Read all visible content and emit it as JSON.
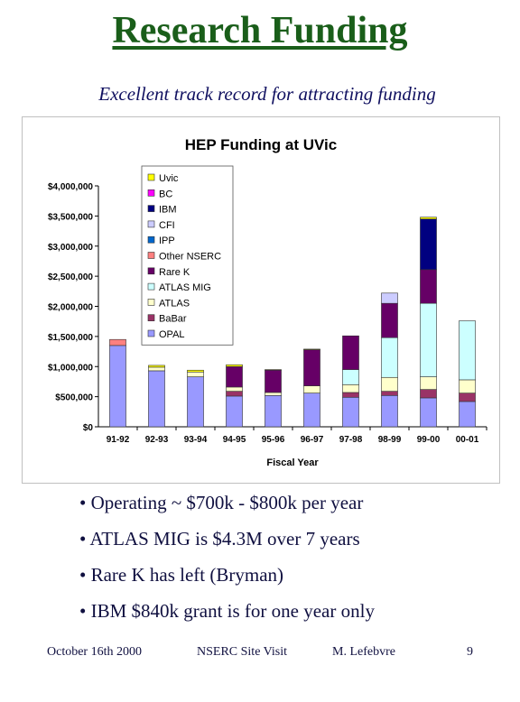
{
  "slide": {
    "title": "Research Funding",
    "subtitle": "Excellent track record for attracting funding",
    "bullets": [
      "• Operating ~ $700k - $800k per year",
      "• ATLAS MIG is $4.3M over 7 years",
      "• Rare K has left (Bryman)",
      "• IBM $840k grant is for one year only"
    ],
    "footer": {
      "date": "October 16th 2000",
      "venue": "NSERC Site Visit",
      "author": "M. Lefebvre",
      "page": "9"
    }
  },
  "chart_data": {
    "type": "bar",
    "stacked": true,
    "title": "HEP Funding at UVic",
    "xlabel": "Fiscal Year",
    "ylabel": "",
    "ylim": [
      0,
      4000000
    ],
    "yticks": [
      0,
      500000,
      1000000,
      1500000,
      2000000,
      2500000,
      3000000,
      3500000,
      4000000
    ],
    "ytick_labels": [
      "$0",
      "$500,000",
      "$1,000,000",
      "$1,500,000",
      "$2,000,000",
      "$2,500,000",
      "$3,000,000",
      "$3,500,000",
      "$4,000,000"
    ],
    "grid": false,
    "legend_position": "top-left",
    "categories": [
      "91-92",
      "92-93",
      "93-94",
      "94-95",
      "95-96",
      "96-97",
      "97-98",
      "98-99",
      "99-00",
      "00-01"
    ],
    "series": [
      {
        "name": "OPAL",
        "color": "#9999ff",
        "values": [
          1350000,
          930000,
          830000,
          510000,
          520000,
          560000,
          490000,
          520000,
          480000,
          420000
        ]
      },
      {
        "name": "BaBar",
        "color": "#993366",
        "values": [
          0,
          0,
          0,
          80000,
          0,
          0,
          80000,
          70000,
          140000,
          140000
        ]
      },
      {
        "name": "ATLAS",
        "color": "#ffffcc",
        "values": [
          0,
          60000,
          80000,
          70000,
          50000,
          120000,
          130000,
          230000,
          210000,
          220000
        ]
      },
      {
        "name": "ATLAS MIG",
        "color": "#ccffff",
        "values": [
          0,
          0,
          0,
          0,
          0,
          0,
          250000,
          660000,
          1220000,
          980000
        ]
      },
      {
        "name": "Rare K",
        "color": "#660066",
        "values": [
          0,
          0,
          0,
          340000,
          370000,
          600000,
          560000,
          570000,
          560000,
          0
        ]
      },
      {
        "name": "Other NSERC",
        "color": "#ff8080",
        "values": [
          100000,
          0,
          0,
          0,
          0,
          0,
          0,
          0,
          0,
          0
        ]
      },
      {
        "name": "IPP",
        "color": "#0066cc",
        "values": [
          0,
          0,
          0,
          0,
          0,
          0,
          0,
          0,
          0,
          0
        ]
      },
      {
        "name": "CFI",
        "color": "#ccccff",
        "values": [
          0,
          0,
          0,
          0,
          0,
          0,
          0,
          170000,
          0,
          0
        ]
      },
      {
        "name": "IBM",
        "color": "#000080",
        "values": [
          0,
          0,
          0,
          0,
          0,
          0,
          0,
          0,
          840000,
          0
        ]
      },
      {
        "name": "BC",
        "color": "#ff00ff",
        "values": [
          0,
          0,
          0,
          0,
          0,
          0,
          0,
          0,
          0,
          0
        ]
      },
      {
        "name": "Uvic",
        "color": "#ffff00",
        "values": [
          0,
          30000,
          30000,
          30000,
          10000,
          10000,
          0,
          0,
          30000,
          0
        ]
      }
    ],
    "legend_order": [
      "Uvic",
      "BC",
      "IBM",
      "CFI",
      "IPP",
      "Other NSERC",
      "Rare K",
      "ATLAS MIG",
      "ATLAS",
      "BaBar",
      "OPAL"
    ]
  }
}
